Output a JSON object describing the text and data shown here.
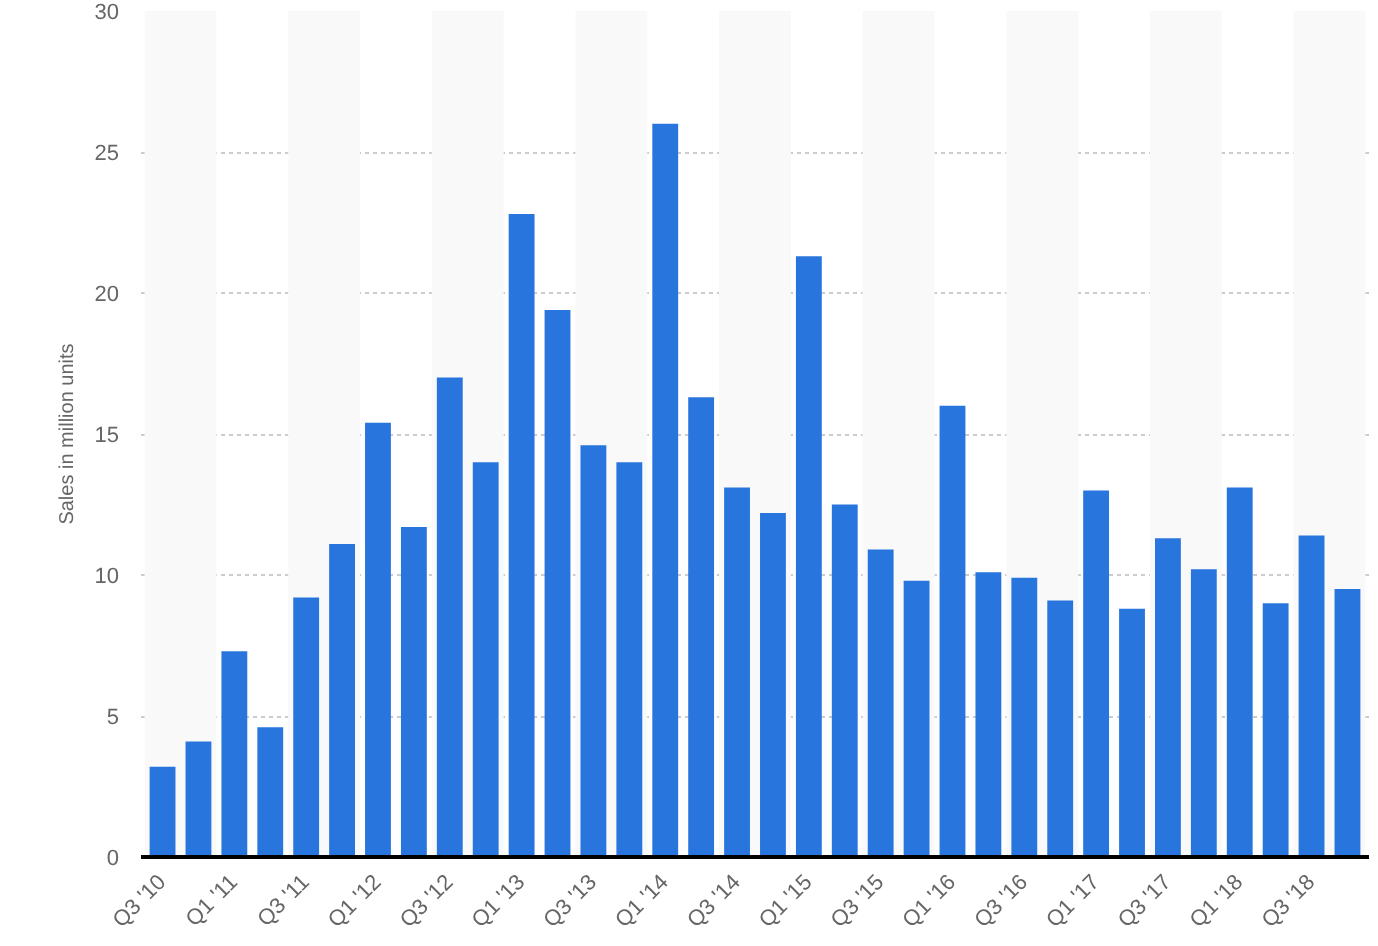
{
  "chart_data": {
    "type": "bar",
    "ylabel": "Sales in million units",
    "categories": [
      "Q3 '10",
      null,
      "Q1 '11",
      null,
      "Q3 '11",
      null,
      "Q1 '12",
      null,
      "Q3 '12",
      null,
      "Q1 '13",
      null,
      "Q3 '13",
      null,
      "Q1 '14",
      null,
      "Q3 '14",
      null,
      "Q1 '15",
      null,
      "Q3 '15",
      null,
      "Q1 '16",
      null,
      "Q3 '16",
      null,
      "Q1 '17",
      null,
      "Q3 '17",
      null,
      "Q1 '18",
      null,
      "Q3 '18",
      null
    ],
    "values": [
      3.2,
      4.1,
      7.3,
      4.6,
      9.2,
      11.1,
      15.4,
      11.7,
      17.0,
      14.0,
      22.8,
      19.4,
      14.6,
      14.0,
      26.0,
      16.3,
      13.1,
      12.2,
      21.3,
      12.5,
      10.9,
      9.8,
      16.0,
      10.1,
      9.9,
      9.1,
      13.0,
      8.8,
      11.3,
      10.2,
      13.1,
      9.0,
      11.4,
      9.5
    ],
    "color": "#2876dd",
    "ylim": [
      0,
      30
    ],
    "yticks": [
      0,
      5,
      10,
      15,
      20,
      25,
      30
    ],
    "grid": "y"
  }
}
